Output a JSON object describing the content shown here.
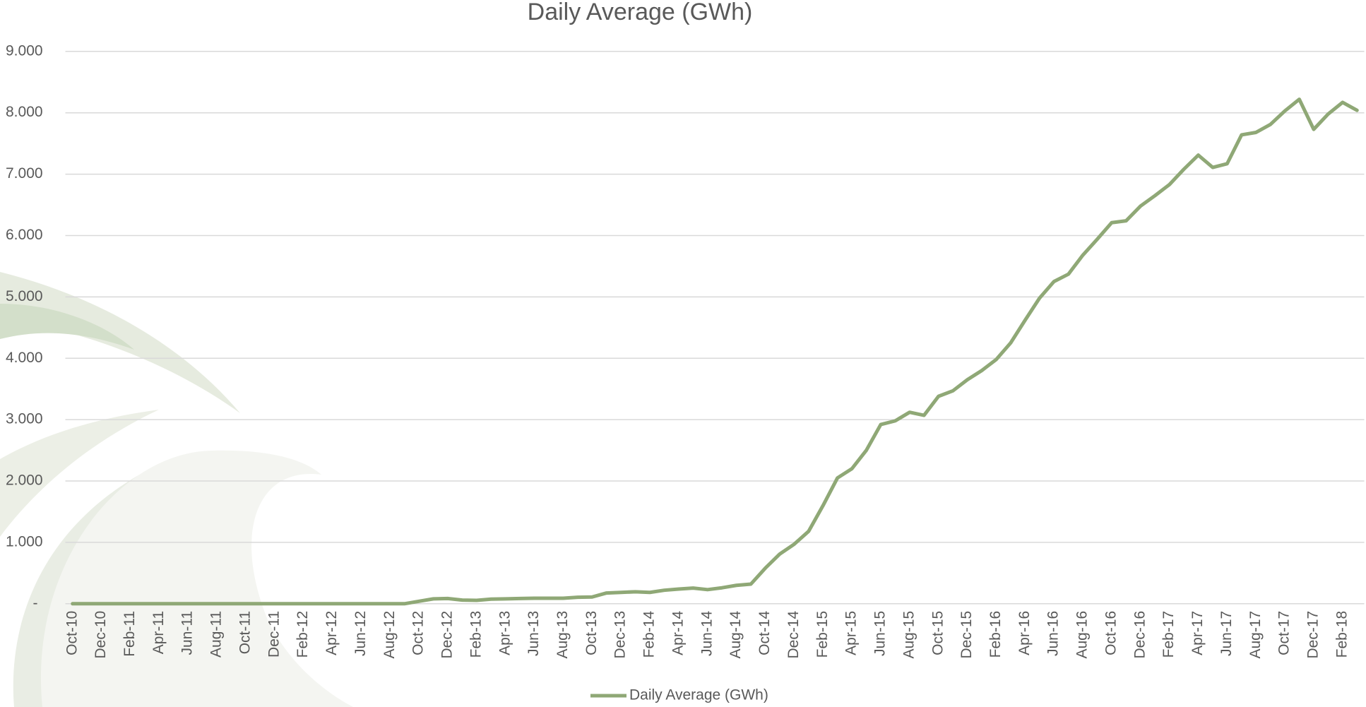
{
  "chart_data": {
    "type": "line",
    "title": "Daily Average (GWh)",
    "categories": [
      "Oct-10",
      null,
      "Dec-10",
      null,
      "Feb-11",
      null,
      "Apr-11",
      null,
      "Jun-11",
      null,
      "Aug-11",
      null,
      "Oct-11",
      null,
      "Dec-11",
      null,
      "Feb-12",
      null,
      "Apr-12",
      null,
      "Jun-12",
      null,
      "Aug-12",
      null,
      "Oct-12",
      null,
      "Dec-12",
      null,
      "Feb-13",
      null,
      "Apr-13",
      null,
      "Jun-13",
      null,
      "Aug-13",
      null,
      "Oct-13",
      null,
      "Dec-13",
      null,
      "Feb-14",
      null,
      "Apr-14",
      null,
      "Jun-14",
      null,
      "Aug-14",
      null,
      "Oct-14",
      null,
      "Dec-14",
      null,
      "Feb-15",
      null,
      "Apr-15",
      null,
      "Jun-15",
      null,
      "Aug-15",
      null,
      "Oct-15",
      null,
      "Dec-15",
      null,
      "Feb-16",
      null,
      "Apr-16",
      null,
      "Jun-16",
      null,
      "Aug-16",
      null,
      "Oct-16",
      null,
      "Dec-16",
      null,
      "Feb-17",
      null,
      "Apr-17",
      null,
      "Jun-17",
      null,
      "Aug-17",
      null,
      "Oct-17",
      null,
      "Dec-17",
      null,
      "Feb-18",
      null
    ],
    "series": [
      {
        "name": "Daily Average (GWh)",
        "color": "#8fa876",
        "values": [
          0,
          0,
          0,
          0,
          0,
          0,
          0,
          0,
          0,
          0,
          0,
          0,
          0,
          0,
          0,
          0,
          0,
          0,
          0,
          0,
          0,
          0,
          0,
          0,
          40,
          80,
          85,
          60,
          55,
          75,
          80,
          85,
          90,
          90,
          90,
          105,
          110,
          175,
          185,
          195,
          185,
          220,
          240,
          255,
          230,
          260,
          300,
          320,
          580,
          810,
          970,
          1180,
          1600,
          2050,
          2200,
          2500,
          2920,
          2980,
          3120,
          3070,
          3380,
          3470,
          3650,
          3800,
          3980,
          4250,
          4620,
          4980,
          5250,
          5370,
          5680,
          5940,
          6210,
          6240,
          6480,
          6650,
          6830,
          7080,
          7310,
          7110,
          7170,
          7640,
          7680,
          7810,
          8030,
          8220,
          7730,
          7980,
          8170,
          8040
        ]
      }
    ],
    "ylim": [
      0,
      9000
    ],
    "yticks": [
      {
        "value": 0,
        "label": "-"
      },
      {
        "value": 1000,
        "label": "1.000"
      },
      {
        "value": 2000,
        "label": "2.000"
      },
      {
        "value": 3000,
        "label": "3.000"
      },
      {
        "value": 4000,
        "label": "4.000"
      },
      {
        "value": 5000,
        "label": "5.000"
      },
      {
        "value": 6000,
        "label": "6.000"
      },
      {
        "value": 7000,
        "label": "7.000"
      },
      {
        "value": 8000,
        "label": "8.000"
      },
      {
        "value": 9000,
        "label": "9.000"
      }
    ],
    "grid": true,
    "legend": "bottom"
  }
}
